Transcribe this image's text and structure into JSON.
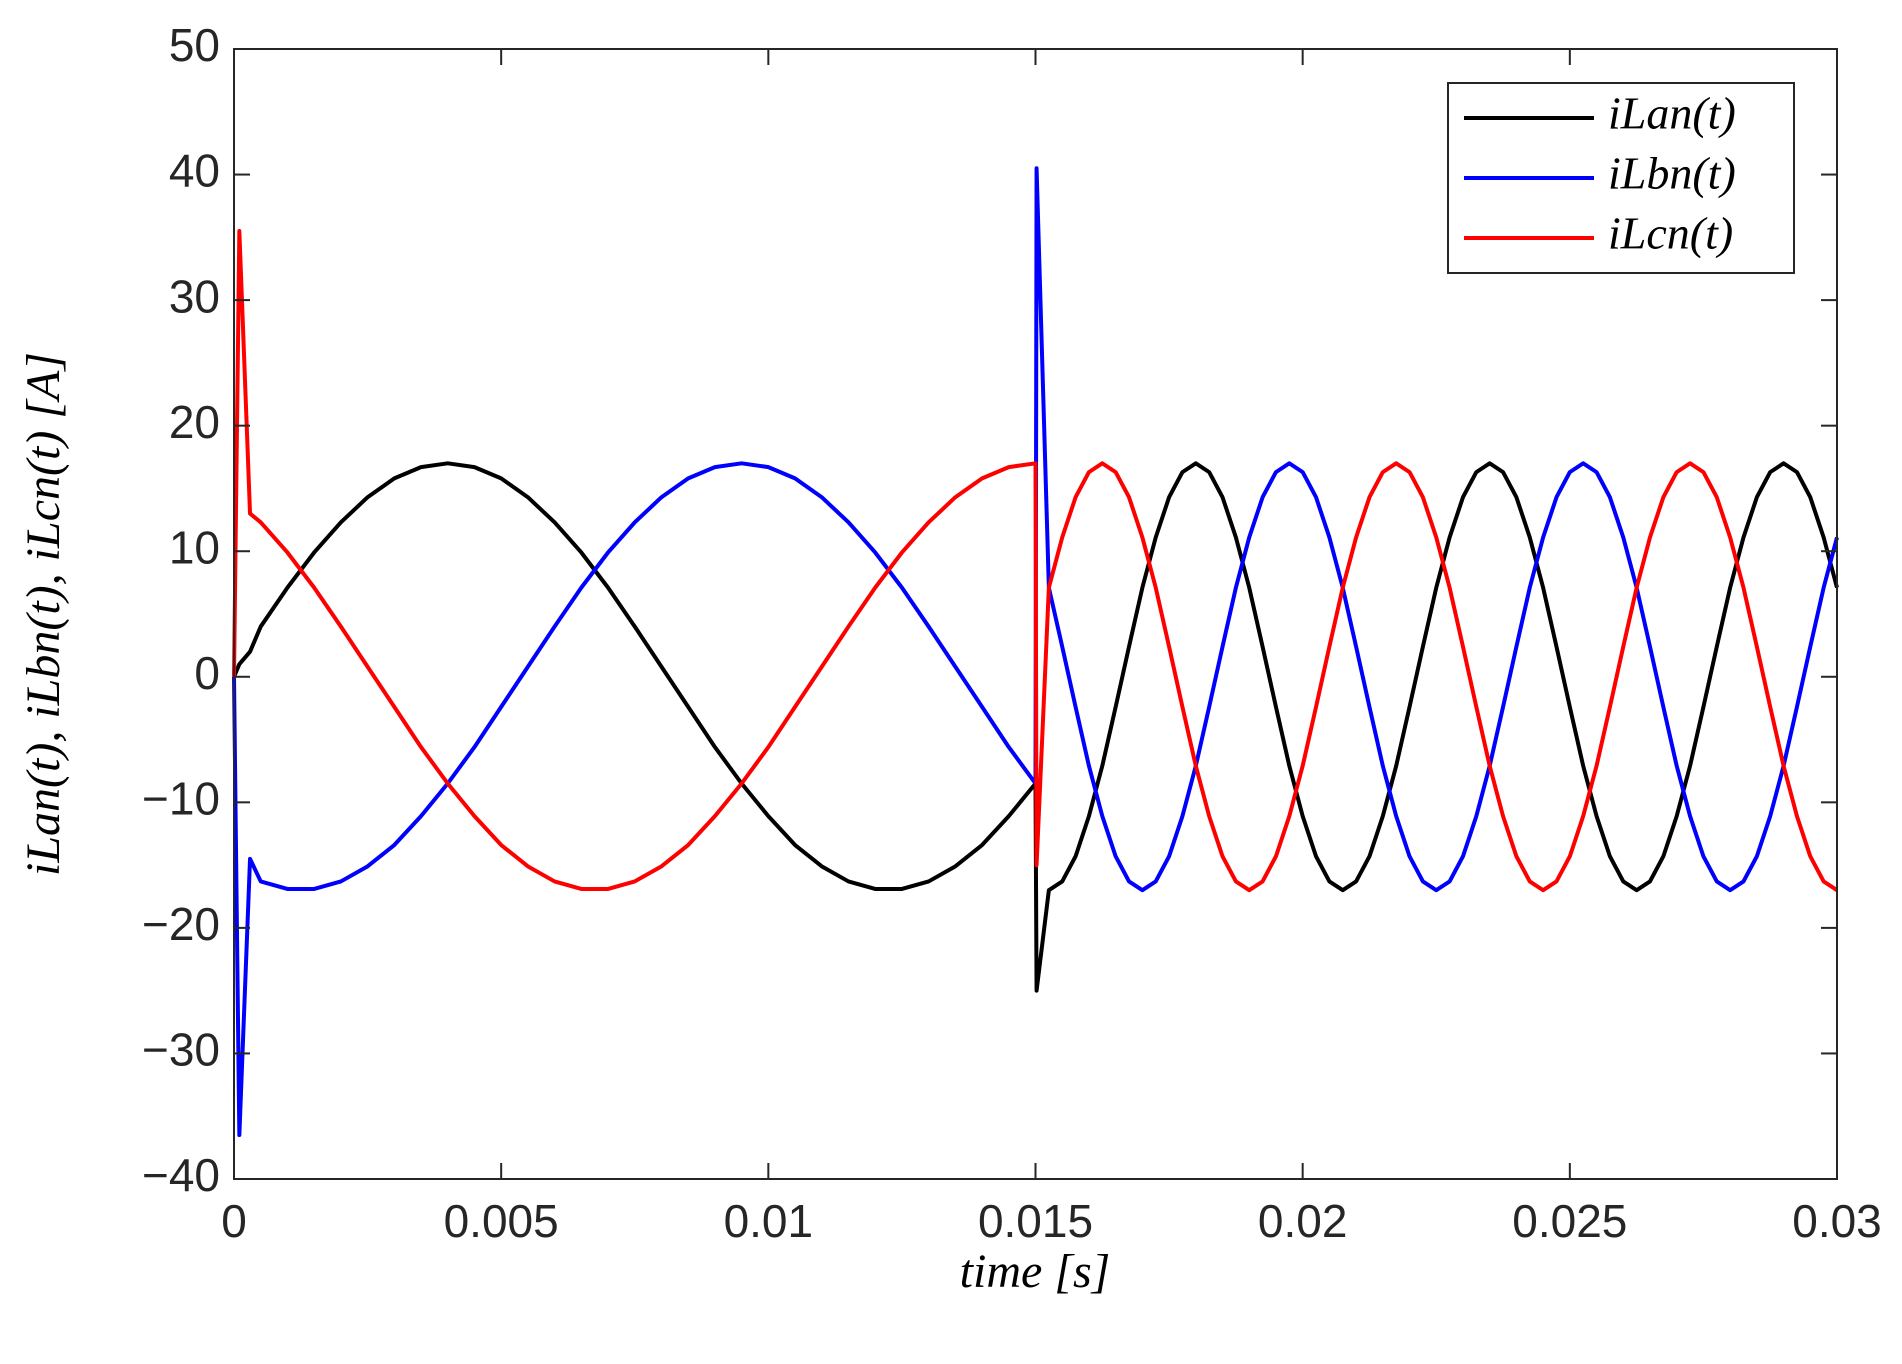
{
  "chart_data": {
    "type": "line",
    "xlabel": "time  [s]",
    "ylabel": "iLan(t), iLbn(t), iLcn(t)  [A]",
    "x": [
      0,
      0.0001,
      0.0003,
      0.0005,
      0.001,
      0.0015,
      0.002,
      0.0025,
      0.003,
      0.0035,
      0.004,
      0.0045,
      0.005,
      0.0055,
      0.006,
      0.0065,
      0.007,
      0.0075,
      0.008,
      0.0085,
      0.009,
      0.0095,
      0.01,
      0.0105,
      0.011,
      0.0115,
      0.012,
      0.0125,
      0.013,
      0.0135,
      0.014,
      0.0145,
      0.015,
      0.01502,
      0.01525,
      0.0155,
      0.01575,
      0.016,
      0.01625,
      0.0165,
      0.01675,
      0.017,
      0.01725,
      0.0175,
      0.01775,
      0.018,
      0.01825,
      0.0185,
      0.01875,
      0.019,
      0.01925,
      0.0195,
      0.01975,
      0.02,
      0.02025,
      0.0205,
      0.02075,
      0.021,
      0.02125,
      0.0215,
      0.02175,
      0.022,
      0.02225,
      0.0225,
      0.02275,
      0.023,
      0.02325,
      0.0235,
      0.02375,
      0.024,
      0.02425,
      0.0245,
      0.02475,
      0.025,
      0.02525,
      0.0255,
      0.02575,
      0.026,
      0.02625,
      0.0265,
      0.02675,
      0.027,
      0.02725,
      0.0275,
      0.02775,
      0.028,
      0.02825,
      0.0285,
      0.02875,
      0.029,
      0.02925,
      0.0295,
      0.02975,
      0.03
    ],
    "series": [
      {
        "name": "iLan(t)",
        "color": "#000000",
        "values": [
          0,
          1,
          2,
          4.0,
          7.1,
          9.9,
          12.3,
          14.3,
          15.8,
          16.7,
          17.0,
          16.7,
          15.8,
          14.3,
          12.3,
          9.9,
          7.1,
          4.0,
          0.8,
          -2.4,
          -5.6,
          -8.5,
          -11.1,
          -13.4,
          -15.1,
          -16.3,
          -16.9,
          -16.9,
          -16.3,
          -15.1,
          -13.4,
          -11.1,
          -8.5,
          -25,
          -17.0,
          -16.3,
          -14.3,
          -11.1,
          -7.1,
          -2.4,
          2.4,
          7.1,
          11.1,
          14.3,
          16.3,
          17.0,
          16.3,
          14.3,
          11.1,
          7.1,
          2.4,
          -2.4,
          -7.1,
          -11.1,
          -14.3,
          -16.3,
          -17.0,
          -16.3,
          -14.3,
          -11.1,
          -7.1,
          -2.4,
          2.4,
          7.1,
          11.1,
          14.3,
          16.3,
          17.0,
          16.3,
          14.3,
          11.1,
          7.1,
          2.4,
          -2.4,
          -7.1,
          -11.1,
          -14.3,
          -16.3,
          -17.0,
          -16.3,
          -14.3,
          -11.1,
          -7.1,
          -2.4,
          2.4,
          7.1,
          11.1,
          14.3,
          16.3,
          17.0,
          16.3,
          14.3,
          11.1,
          7.1
        ]
      },
      {
        "name": "iLbn(t)",
        "color": "#0000ff",
        "values": [
          0,
          -36.5,
          -14.5,
          -16.3,
          -16.9,
          -16.9,
          -16.3,
          -15.1,
          -13.4,
          -11.1,
          -8.5,
          -5.6,
          -2.4,
          0.8,
          4.0,
          7.1,
          9.9,
          12.3,
          14.3,
          15.8,
          16.7,
          17.0,
          16.7,
          15.8,
          14.3,
          12.3,
          9.9,
          7.1,
          4.0,
          0.8,
          -2.4,
          -5.6,
          -8.5,
          40.5,
          7.1,
          2.4,
          -2.4,
          -7.1,
          -11.1,
          -14.3,
          -16.3,
          -17.0,
          -16.3,
          -14.3,
          -11.1,
          -7.1,
          -2.4,
          2.4,
          7.1,
          11.1,
          14.3,
          16.3,
          17.0,
          16.3,
          14.3,
          11.1,
          7.1,
          2.4,
          -2.4,
          -7.1,
          -11.1,
          -14.3,
          -16.3,
          -17.0,
          -16.3,
          -14.3,
          -11.1,
          -7.1,
          -2.4,
          2.4,
          7.1,
          11.1,
          14.3,
          16.3,
          17.0,
          16.3,
          14.3,
          11.1,
          7.1,
          2.4,
          -2.4,
          -7.1,
          -11.1,
          -14.3,
          -16.3,
          -17.0,
          -16.3,
          -14.3,
          -11.1,
          -7.1,
          -2.4,
          2.4,
          7.1,
          11.1
        ]
      },
      {
        "name": "iLcn(t)",
        "color": "#ff0000",
        "values": [
          0,
          35.5,
          13,
          12.3,
          9.9,
          7.1,
          4.0,
          0.8,
          -2.4,
          -5.6,
          -8.5,
          -11.1,
          -13.4,
          -15.1,
          -16.3,
          -16.9,
          -16.9,
          -16.3,
          -15.1,
          -13.4,
          -11.1,
          -8.5,
          -5.6,
          -2.4,
          0.8,
          4.0,
          7.1,
          9.9,
          12.3,
          14.3,
          15.8,
          16.7,
          17.0,
          -15,
          7.1,
          11.1,
          14.3,
          16.3,
          17.0,
          16.3,
          14.3,
          11.1,
          7.1,
          2.4,
          -2.4,
          -7.1,
          -11.1,
          -14.3,
          -16.3,
          -17.0,
          -16.3,
          -14.3,
          -11.1,
          -7.1,
          -2.4,
          2.4,
          7.1,
          11.1,
          14.3,
          16.3,
          17.0,
          16.3,
          14.3,
          11.1,
          7.1,
          2.4,
          -2.4,
          -7.1,
          -11.1,
          -14.3,
          -16.3,
          -17.0,
          -16.3,
          -14.3,
          -11.1,
          -7.1,
          -2.4,
          2.4,
          7.1,
          11.1,
          14.3,
          16.3,
          17.0,
          16.3,
          14.3,
          11.1,
          7.1,
          2.4,
          -2.4,
          -7.1,
          -11.1,
          -14.3,
          -16.3,
          -17.0
        ]
      }
    ],
    "xlim": [
      0,
      0.03
    ],
    "xticks": [
      0,
      0.005,
      0.01,
      0.015,
      0.02,
      0.025,
      0.03
    ],
    "ylim": [
      -40,
      50
    ],
    "yticks": [
      {
        "value": -40,
        "label": "−40"
      },
      {
        "value": -30,
        "label": "−30"
      },
      {
        "value": -20,
        "label": "−20"
      },
      {
        "value": -10,
        "label": "−10"
      },
      0,
      10,
      20,
      30,
      40,
      50
    ],
    "grid": false,
    "legend": "upper right"
  }
}
